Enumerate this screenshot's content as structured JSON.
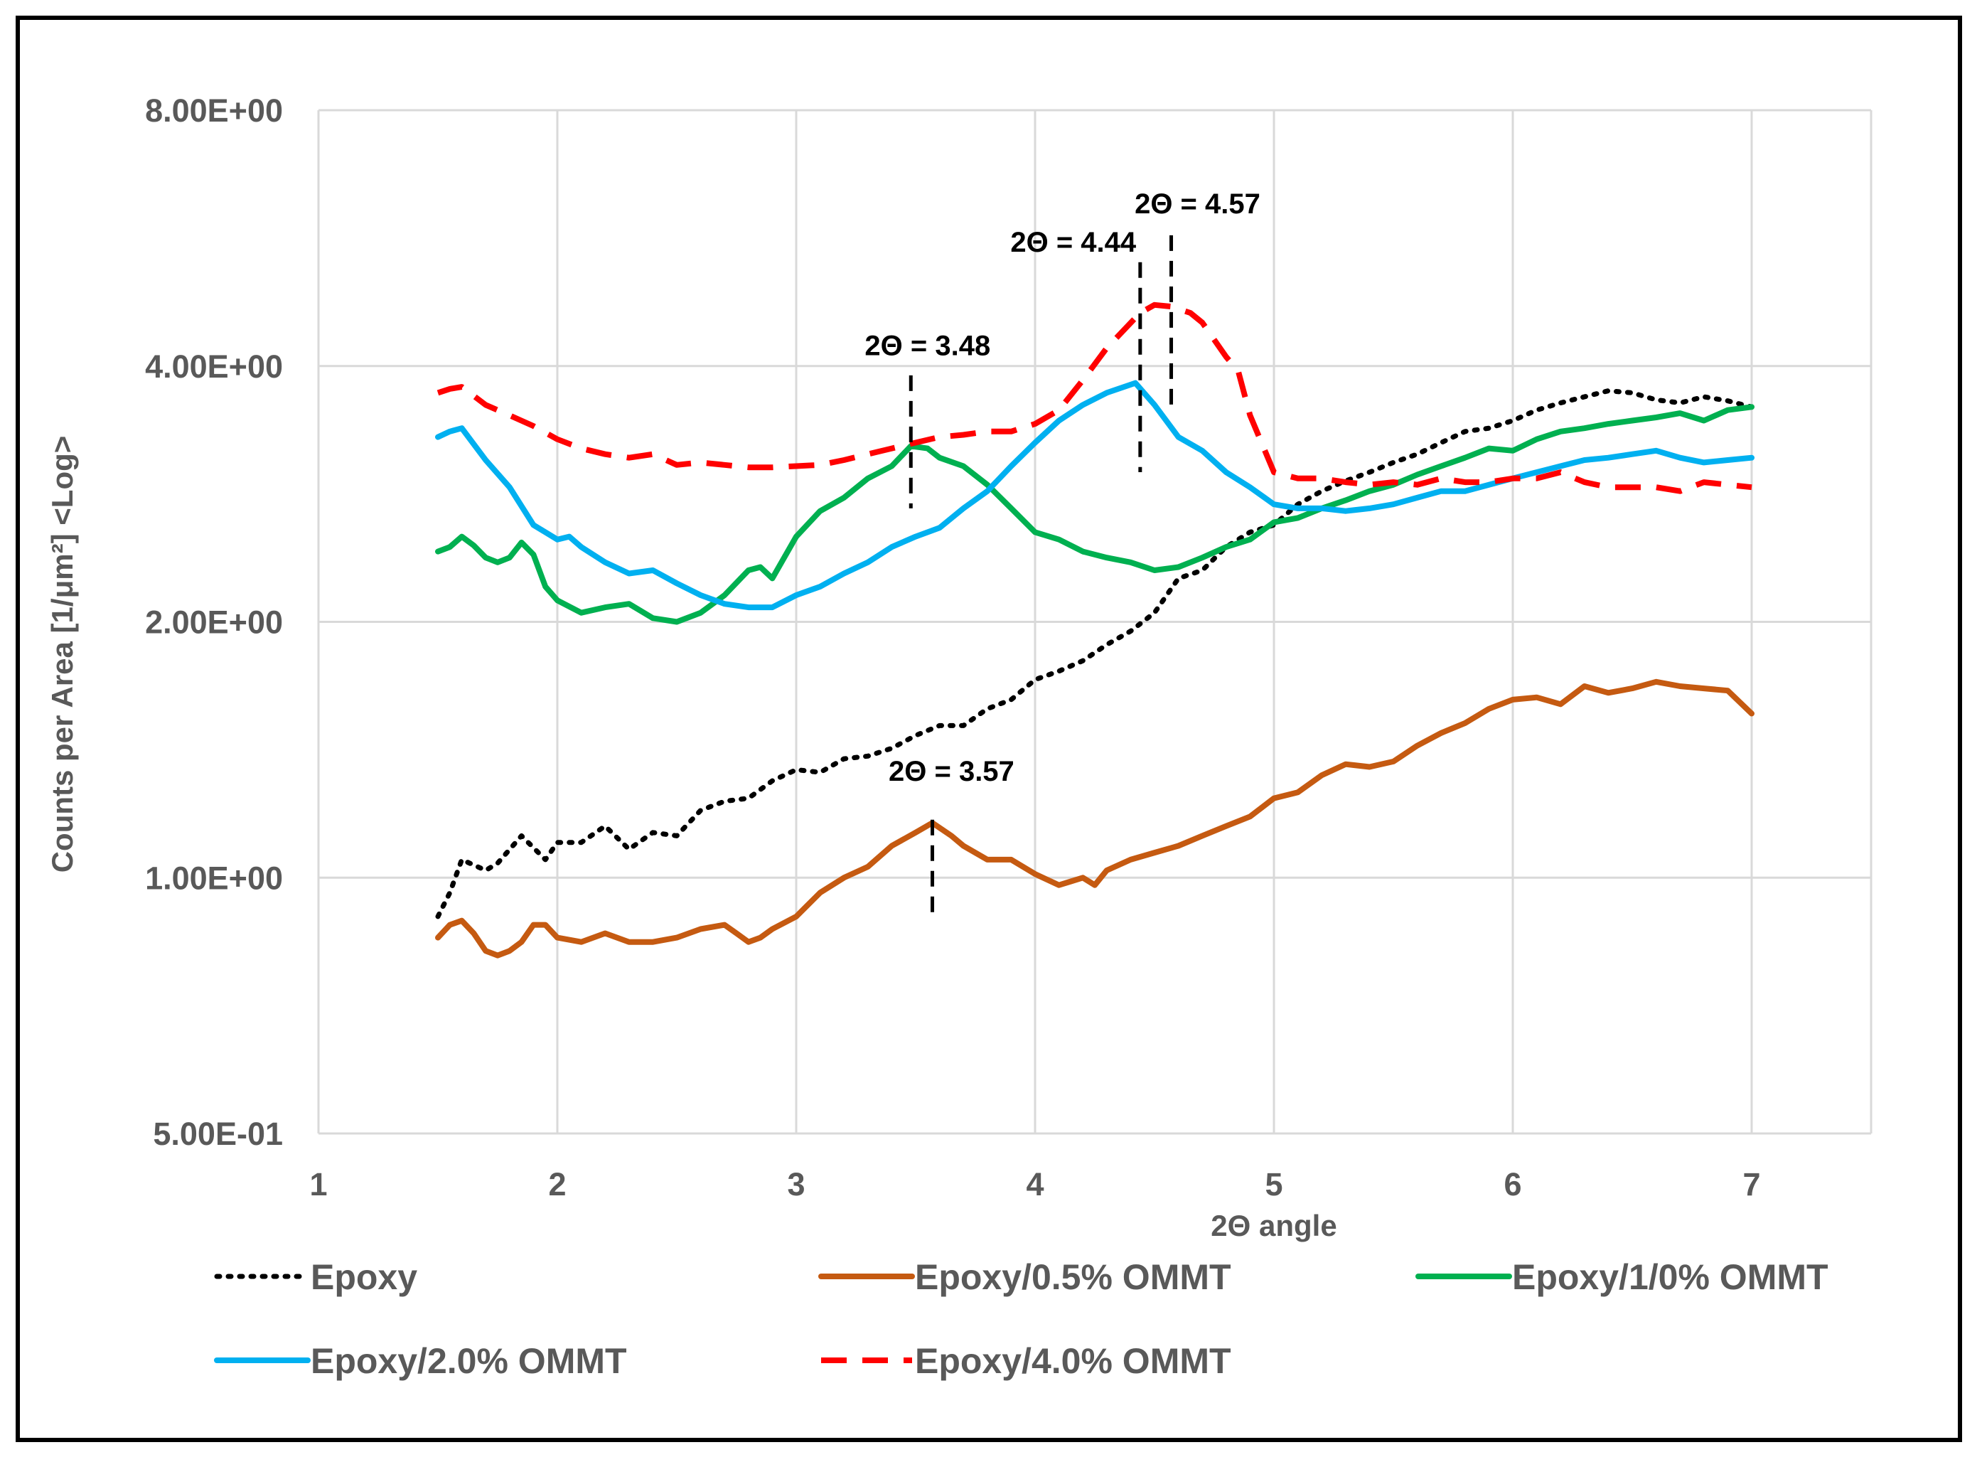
{
  "chart_data": {
    "type": "line",
    "title": "",
    "xlabel": "2Θ angle",
    "ylabel": "Counts per Area [1/μm²] <Log>",
    "yscale": "log2",
    "xlim": [
      1,
      7.5
    ],
    "ylim": [
      0.5,
      8
    ],
    "x_ticks": [
      {
        "value": 1,
        "label": "1"
      },
      {
        "value": 2,
        "label": "2"
      },
      {
        "value": 3,
        "label": "3"
      },
      {
        "value": 4,
        "label": "4"
      },
      {
        "value": 5,
        "label": "5"
      },
      {
        "value": 6,
        "label": "6"
      },
      {
        "value": 7,
        "label": "7"
      }
    ],
    "y_ticks": [
      {
        "value": 0.5,
        "label": "5.00E-01"
      },
      {
        "value": 1,
        "label": "1.00E+00"
      },
      {
        "value": 2,
        "label": "2.00E+00"
      },
      {
        "value": 4,
        "label": "4.00E+00"
      },
      {
        "value": 8,
        "label": "8.00E+00"
      }
    ],
    "grid": true,
    "legend_position": "bottom",
    "series": [
      {
        "name": "Epoxy",
        "color": "#000000",
        "style": "dotted",
        "x": [
          1.5,
          1.55,
          1.6,
          1.7,
          1.75,
          1.85,
          1.95,
          2.0,
          2.1,
          2.2,
          2.3,
          2.4,
          2.5,
          2.6,
          2.7,
          2.8,
          2.9,
          3.0,
          3.1,
          3.2,
          3.3,
          3.4,
          3.5,
          3.6,
          3.7,
          3.8,
          3.9,
          4.0,
          4.1,
          4.2,
          4.3,
          4.4,
          4.5,
          4.6,
          4.7,
          4.8,
          4.9,
          5.0,
          5.1,
          5.2,
          5.3,
          5.4,
          5.5,
          5.6,
          5.7,
          5.8,
          5.9,
          6.0,
          6.1,
          6.2,
          6.3,
          6.4,
          6.5,
          6.6,
          6.7,
          6.8,
          6.9,
          7.0
        ],
        "values": [
          0.9,
          0.96,
          1.05,
          1.02,
          1.04,
          1.12,
          1.05,
          1.1,
          1.1,
          1.15,
          1.08,
          1.13,
          1.12,
          1.2,
          1.23,
          1.24,
          1.3,
          1.34,
          1.33,
          1.38,
          1.39,
          1.42,
          1.47,
          1.51,
          1.51,
          1.58,
          1.62,
          1.71,
          1.75,
          1.8,
          1.88,
          1.95,
          2.05,
          2.25,
          2.3,
          2.45,
          2.55,
          2.6,
          2.75,
          2.85,
          2.93,
          3.0,
          3.08,
          3.15,
          3.25,
          3.35,
          3.38,
          3.45,
          3.55,
          3.62,
          3.68,
          3.74,
          3.72,
          3.65,
          3.62,
          3.68,
          3.64,
          3.58
        ]
      },
      {
        "name": "Epoxy/0.5% OMMT",
        "color": "#c55a11",
        "style": "solid",
        "x": [
          1.5,
          1.55,
          1.6,
          1.65,
          1.7,
          1.75,
          1.8,
          1.85,
          1.9,
          1.95,
          2.0,
          2.1,
          2.2,
          2.3,
          2.4,
          2.5,
          2.6,
          2.7,
          2.75,
          2.8,
          2.85,
          2.9,
          3.0,
          3.1,
          3.2,
          3.3,
          3.4,
          3.5,
          3.57,
          3.65,
          3.7,
          3.8,
          3.9,
          4.0,
          4.1,
          4.15,
          4.2,
          4.25,
          4.3,
          4.4,
          4.5,
          4.6,
          4.7,
          4.8,
          4.9,
          5.0,
          5.1,
          5.2,
          5.3,
          5.4,
          5.5,
          5.6,
          5.7,
          5.8,
          5.9,
          6.0,
          6.1,
          6.2,
          6.3,
          6.4,
          6.5,
          6.6,
          6.7,
          6.8,
          6.9,
          7.0
        ],
        "values": [
          0.85,
          0.88,
          0.89,
          0.86,
          0.82,
          0.81,
          0.82,
          0.84,
          0.88,
          0.88,
          0.85,
          0.84,
          0.86,
          0.84,
          0.84,
          0.85,
          0.87,
          0.88,
          0.86,
          0.84,
          0.85,
          0.87,
          0.9,
          0.96,
          1.0,
          1.03,
          1.09,
          1.13,
          1.16,
          1.12,
          1.09,
          1.05,
          1.05,
          1.01,
          0.98,
          0.99,
          1.0,
          0.98,
          1.02,
          1.05,
          1.07,
          1.09,
          1.12,
          1.15,
          1.18,
          1.24,
          1.26,
          1.32,
          1.36,
          1.35,
          1.37,
          1.43,
          1.48,
          1.52,
          1.58,
          1.62,
          1.63,
          1.6,
          1.68,
          1.65,
          1.67,
          1.7,
          1.68,
          1.67,
          1.66,
          1.56
        ]
      },
      {
        "name": "Epoxy/1/0% OMMT",
        "color": "#00b050",
        "style": "solid",
        "x": [
          1.5,
          1.55,
          1.6,
          1.65,
          1.7,
          1.75,
          1.8,
          1.85,
          1.9,
          1.95,
          2.0,
          2.1,
          2.2,
          2.3,
          2.4,
          2.5,
          2.6,
          2.7,
          2.8,
          2.85,
          2.9,
          3.0,
          3.1,
          3.2,
          3.3,
          3.4,
          3.48,
          3.55,
          3.6,
          3.7,
          3.8,
          3.9,
          4.0,
          4.1,
          4.2,
          4.3,
          4.4,
          4.5,
          4.6,
          4.7,
          4.8,
          4.9,
          5.0,
          5.1,
          5.2,
          5.3,
          5.4,
          5.5,
          5.6,
          5.7,
          5.8,
          5.9,
          6.0,
          6.1,
          6.2,
          6.3,
          6.4,
          6.5,
          6.6,
          6.7,
          6.8,
          6.9,
          7.0
        ],
        "values": [
          2.42,
          2.45,
          2.52,
          2.46,
          2.38,
          2.35,
          2.38,
          2.48,
          2.4,
          2.2,
          2.12,
          2.05,
          2.08,
          2.1,
          2.02,
          2.0,
          2.05,
          2.15,
          2.3,
          2.32,
          2.25,
          2.52,
          2.7,
          2.8,
          2.95,
          3.05,
          3.22,
          3.2,
          3.12,
          3.05,
          2.9,
          2.72,
          2.55,
          2.5,
          2.42,
          2.38,
          2.35,
          2.3,
          2.32,
          2.38,
          2.45,
          2.5,
          2.62,
          2.65,
          2.72,
          2.78,
          2.85,
          2.9,
          2.98,
          3.05,
          3.12,
          3.2,
          3.18,
          3.28,
          3.35,
          3.38,
          3.42,
          3.45,
          3.48,
          3.52,
          3.45,
          3.55,
          3.58
        ]
      },
      {
        "name": "Epoxy/2.0% OMMT",
        "color": "#00b0f0",
        "style": "solid",
        "x": [
          1.5,
          1.55,
          1.6,
          1.7,
          1.8,
          1.9,
          2.0,
          2.05,
          2.1,
          2.2,
          2.3,
          2.4,
          2.5,
          2.6,
          2.7,
          2.8,
          2.9,
          3.0,
          3.1,
          3.2,
          3.3,
          3.4,
          3.5,
          3.6,
          3.7,
          3.8,
          3.9,
          4.0,
          4.1,
          4.2,
          4.3,
          4.42,
          4.5,
          4.6,
          4.7,
          4.8,
          4.9,
          5.0,
          5.1,
          5.2,
          5.3,
          5.4,
          5.5,
          5.6,
          5.7,
          5.8,
          5.9,
          6.0,
          6.1,
          6.2,
          6.3,
          6.4,
          6.5,
          6.6,
          6.7,
          6.8,
          6.9,
          7.0
        ],
        "values": [
          3.3,
          3.35,
          3.38,
          3.1,
          2.88,
          2.6,
          2.5,
          2.52,
          2.45,
          2.35,
          2.28,
          2.3,
          2.22,
          2.15,
          2.1,
          2.08,
          2.08,
          2.15,
          2.2,
          2.28,
          2.35,
          2.45,
          2.52,
          2.58,
          2.72,
          2.85,
          3.05,
          3.25,
          3.45,
          3.6,
          3.72,
          3.82,
          3.6,
          3.3,
          3.18,
          3.0,
          2.88,
          2.75,
          2.72,
          2.72,
          2.7,
          2.72,
          2.75,
          2.8,
          2.85,
          2.85,
          2.9,
          2.95,
          3.0,
          3.05,
          3.1,
          3.12,
          3.15,
          3.18,
          3.12,
          3.08,
          3.1,
          3.12
        ]
      },
      {
        "name": "Epoxy/4.0% OMMT",
        "color": "#ff0000",
        "style": "dashed",
        "x": [
          1.5,
          1.55,
          1.6,
          1.7,
          1.8,
          1.9,
          2.0,
          2.1,
          2.2,
          2.3,
          2.4,
          2.5,
          2.6,
          2.7,
          2.8,
          2.9,
          3.0,
          3.1,
          3.2,
          3.3,
          3.4,
          3.5,
          3.6,
          3.7,
          3.8,
          3.9,
          4.0,
          4.1,
          4.2,
          4.3,
          4.44,
          4.5,
          4.57,
          4.65,
          4.7,
          4.8,
          4.85,
          4.9,
          5.0,
          5.1,
          5.2,
          5.3,
          5.4,
          5.5,
          5.6,
          5.7,
          5.8,
          5.9,
          6.0,
          6.1,
          6.2,
          6.3,
          6.4,
          6.5,
          6.6,
          6.7,
          6.8,
          6.9,
          7.0
        ],
        "values": [
          3.72,
          3.76,
          3.78,
          3.6,
          3.5,
          3.4,
          3.28,
          3.2,
          3.15,
          3.12,
          3.15,
          3.06,
          3.08,
          3.06,
          3.04,
          3.04,
          3.05,
          3.06,
          3.1,
          3.15,
          3.2,
          3.25,
          3.3,
          3.32,
          3.35,
          3.35,
          3.42,
          3.55,
          3.85,
          4.2,
          4.62,
          4.72,
          4.7,
          4.62,
          4.5,
          4.1,
          3.95,
          3.5,
          3.0,
          2.95,
          2.95,
          2.92,
          2.9,
          2.92,
          2.9,
          2.95,
          2.92,
          2.92,
          2.95,
          2.95,
          3.0,
          2.92,
          2.88,
          2.88,
          2.88,
          2.85,
          2.92,
          2.9,
          2.88
        ]
      }
    ],
    "annotations": [
      {
        "text": "2Θ = 3.48",
        "x": 3.48
      },
      {
        "text": "2Θ = 3.57",
        "x": 3.57
      },
      {
        "text": "2Θ = 4.44",
        "x": 4.44
      },
      {
        "text": "2Θ = 4.57",
        "x": 4.57
      }
    ]
  }
}
